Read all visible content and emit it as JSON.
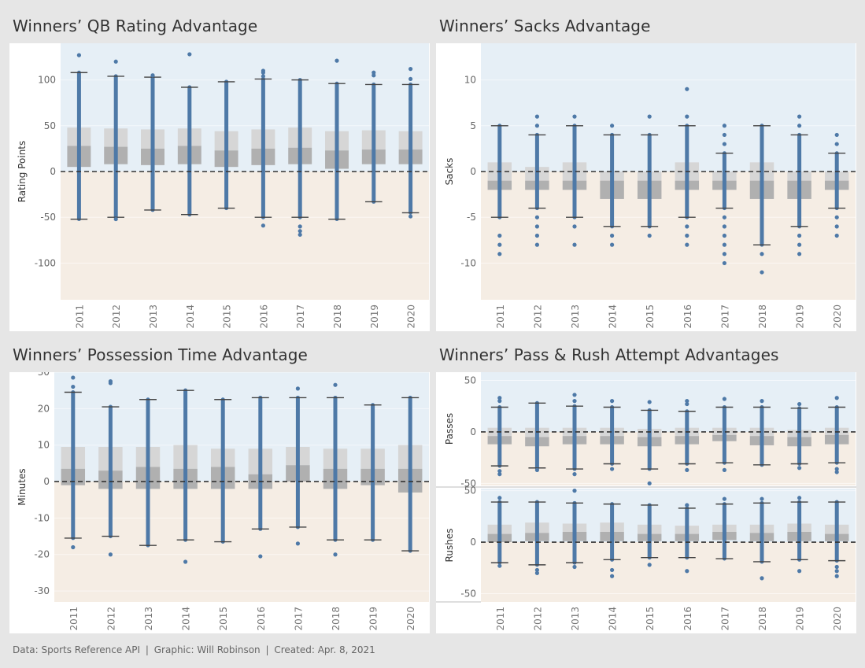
{
  "colors": {
    "positive_band": "#e6eff6",
    "negative_band": "#f5ede4",
    "box_outer": "#d6d6d6",
    "box_inner": "#b0b0b0",
    "median_line": "#8f9db0",
    "points": "#4e79a7",
    "whisker": "#444444",
    "zero_line": "#333333"
  },
  "footer": {
    "data": "Data: Sports Reference API",
    "graphic": "Graphic: Will Robinson",
    "created": "Created: Apr. 8, 2021",
    "separator": "|"
  },
  "chart_data": [
    {
      "id": "qb_rating",
      "type": "box",
      "title": "Winners’ QB Rating Advantage",
      "ylabel": "Rating Points",
      "categories": [
        "2011",
        "2012",
        "2013",
        "2014",
        "2015",
        "2016",
        "2017",
        "2018",
        "2019",
        "2020"
      ],
      "ylim": [
        -140,
        140
      ],
      "yticks": [
        100,
        50,
        0,
        -50,
        -100
      ],
      "ytick_labels": [
        "100",
        "50",
        "0",
        "-50",
        "-100"
      ],
      "boxes": [
        {
          "whisker_low": -52,
          "q1": 5,
          "median": 28,
          "q3": 48,
          "whisker_high": 108,
          "outliers": [
            127
          ],
          "lo_outliers": []
        },
        {
          "whisker_low": -50,
          "q1": 8,
          "median": 27,
          "q3": 47,
          "whisker_high": 104,
          "outliers": [
            120
          ],
          "lo_outliers": [
            -52
          ]
        },
        {
          "whisker_low": -42,
          "q1": 7,
          "median": 25,
          "q3": 46,
          "whisker_high": 103,
          "outliers": [
            105
          ],
          "lo_outliers": []
        },
        {
          "whisker_low": -47,
          "q1": 8,
          "median": 28,
          "q3": 47,
          "whisker_high": 92,
          "outliers": [
            128
          ],
          "lo_outliers": []
        },
        {
          "whisker_low": -40,
          "q1": 5,
          "median": 23,
          "q3": 44,
          "whisker_high": 98,
          "outliers": [],
          "lo_outliers": []
        },
        {
          "whisker_low": -50,
          "q1": 7,
          "median": 25,
          "q3": 46,
          "whisker_high": 101,
          "outliers": [
            104,
            108,
            110
          ],
          "lo_outliers": [
            -59
          ]
        },
        {
          "whisker_low": -50,
          "q1": 8,
          "median": 26,
          "q3": 48,
          "whisker_high": 100,
          "outliers": [],
          "lo_outliers": [
            -60,
            -65,
            -69
          ]
        },
        {
          "whisker_low": -52,
          "q1": 3,
          "median": 23,
          "q3": 44,
          "whisker_high": 96,
          "outliers": [
            121
          ],
          "lo_outliers": []
        },
        {
          "whisker_low": -33,
          "q1": 8,
          "median": 24,
          "q3": 45,
          "whisker_high": 95,
          "outliers": [
            105,
            108
          ],
          "lo_outliers": []
        },
        {
          "whisker_low": -45,
          "q1": 8,
          "median": 24,
          "q3": 44,
          "whisker_high": 95,
          "outliers": [
            101,
            112
          ],
          "lo_outliers": [
            -49
          ]
        }
      ]
    },
    {
      "id": "sacks",
      "type": "box",
      "title": "Winners’ Sacks Advantage",
      "ylabel": "Sacks",
      "categories": [
        "2011",
        "2012",
        "2013",
        "2014",
        "2015",
        "2016",
        "2017",
        "2018",
        "2019",
        "2020"
      ],
      "ylim": [
        -14,
        14
      ],
      "yticks": [
        10,
        5,
        0,
        -5,
        -10
      ],
      "ytick_labels": [
        "10",
        "5",
        "0",
        "-5",
        "-10"
      ],
      "boxes": [
        {
          "whisker_low": -5,
          "q1": -2,
          "median": -1,
          "q3": 1,
          "whisker_high": 5,
          "outliers": [],
          "lo_outliers": [
            -7,
            -8,
            -9
          ]
        },
        {
          "whisker_low": -4,
          "q1": -2,
          "median": -1,
          "q3": 0.5,
          "whisker_high": 4,
          "outliers": [
            5,
            6
          ],
          "lo_outliers": [
            -5,
            -6,
            -7,
            -8
          ]
        },
        {
          "whisker_low": -5,
          "q1": -2,
          "median": -1,
          "q3": 1,
          "whisker_high": 5,
          "outliers": [
            6
          ],
          "lo_outliers": [
            -6,
            -8
          ]
        },
        {
          "whisker_low": -6,
          "q1": -3,
          "median": -1,
          "q3": 0,
          "whisker_high": 4,
          "outliers": [
            5
          ],
          "lo_outliers": [
            -7,
            -8
          ]
        },
        {
          "whisker_low": -6,
          "q1": -3,
          "median": -1,
          "q3": 0,
          "whisker_high": 4,
          "outliers": [
            6
          ],
          "lo_outliers": [
            -7
          ]
        },
        {
          "whisker_low": -5,
          "q1": -2,
          "median": -1,
          "q3": 1,
          "whisker_high": 5,
          "outliers": [
            6,
            9
          ],
          "lo_outliers": [
            -6,
            -7,
            -8
          ]
        },
        {
          "whisker_low": -4,
          "q1": -2,
          "median": -1,
          "q3": 0,
          "whisker_high": 2,
          "outliers": [
            3,
            4,
            5
          ],
          "lo_outliers": [
            -5,
            -6,
            -7,
            -8,
            -9,
            -10
          ]
        },
        {
          "whisker_low": -8,
          "q1": -3,
          "median": -1,
          "q3": 1,
          "whisker_high": 5,
          "outliers": [],
          "lo_outliers": [
            -9,
            -11
          ]
        },
        {
          "whisker_low": -6,
          "q1": -3,
          "median": -1,
          "q3": 0,
          "whisker_high": 4,
          "outliers": [
            5,
            6
          ],
          "lo_outliers": [
            -7,
            -8,
            -9
          ]
        },
        {
          "whisker_low": -4,
          "q1": -2,
          "median": -1,
          "q3": 0,
          "whisker_high": 2,
          "outliers": [
            3,
            4
          ],
          "lo_outliers": [
            -5,
            -6,
            -7
          ]
        }
      ]
    },
    {
      "id": "possession",
      "type": "box",
      "title": "Winners’ Possession Time Advantage",
      "ylabel": "Minutes",
      "categories": [
        "2011",
        "2012",
        "2013",
        "2014",
        "2015",
        "2016",
        "2017",
        "2018",
        "2019",
        "2020"
      ],
      "ylim": [
        -33,
        30
      ],
      "yticks": [
        30,
        20,
        10,
        0,
        -10,
        -20,
        -30
      ],
      "ytick_labels": [
        "30",
        "20",
        "10",
        "0",
        "-10",
        "-20",
        "-30"
      ],
      "boxes": [
        {
          "whisker_low": -15.5,
          "q1": -1,
          "median": 3.5,
          "q3": 9.5,
          "whisker_high": 24.5,
          "outliers": [
            26,
            28.5
          ],
          "lo_outliers": [
            -18
          ]
        },
        {
          "whisker_low": -15,
          "q1": -2,
          "median": 3,
          "q3": 9.5,
          "whisker_high": 20.5,
          "outliers": [
            27,
            27.5
          ],
          "lo_outliers": [
            -20
          ]
        },
        {
          "whisker_low": -17.5,
          "q1": -2,
          "median": 4,
          "q3": 9.5,
          "whisker_high": 22.5,
          "outliers": [],
          "lo_outliers": []
        },
        {
          "whisker_low": -16,
          "q1": -2,
          "median": 3.5,
          "q3": 10,
          "whisker_high": 25,
          "outliers": [],
          "lo_outliers": [
            -22
          ]
        },
        {
          "whisker_low": -16.5,
          "q1": -2,
          "median": 4,
          "q3": 9,
          "whisker_high": 22.5,
          "outliers": [],
          "lo_outliers": []
        },
        {
          "whisker_low": -13,
          "q1": -2,
          "median": 2,
          "q3": 9,
          "whisker_high": 23,
          "outliers": [],
          "lo_outliers": [
            -20.5
          ]
        },
        {
          "whisker_low": -12.5,
          "q1": 0,
          "median": 4.5,
          "q3": 9.5,
          "whisker_high": 23,
          "outliers": [
            25.5
          ],
          "lo_outliers": [
            -17
          ]
        },
        {
          "whisker_low": -16,
          "q1": -2,
          "median": 3.5,
          "q3": 9,
          "whisker_high": 23,
          "outliers": [
            26.5
          ],
          "lo_outliers": [
            -20
          ]
        },
        {
          "whisker_low": -16,
          "q1": -1,
          "median": 3.5,
          "q3": 9,
          "whisker_high": 21,
          "outliers": [],
          "lo_outliers": []
        },
        {
          "whisker_low": -19,
          "q1": -3,
          "median": 3.5,
          "q3": 10,
          "whisker_high": 23,
          "outliers": [],
          "lo_outliers": []
        }
      ]
    },
    {
      "id": "passes",
      "type": "box",
      "title": "Winners’ Pass & Rush Attempt Advantages",
      "ylabel": "Passes",
      "categories": [
        "2011",
        "2012",
        "2013",
        "2014",
        "2015",
        "2016",
        "2017",
        "2018",
        "2019",
        "2020"
      ],
      "ylim": [
        -52,
        58
      ],
      "yticks": [
        50,
        0,
        -50
      ],
      "ytick_labels": [
        "50",
        "0",
        "-50"
      ],
      "boxes": [
        {
          "whisker_low": -33,
          "q1": -12,
          "median": -4,
          "q3": 4,
          "whisker_high": 24,
          "outliers": [
            30,
            33
          ],
          "lo_outliers": [
            -38,
            -41
          ]
        },
        {
          "whisker_low": -35,
          "q1": -14,
          "median": -5,
          "q3": 4,
          "whisker_high": 28,
          "outliers": [],
          "lo_outliers": [
            -37
          ]
        },
        {
          "whisker_low": -36,
          "q1": -12,
          "median": -4,
          "q3": 4,
          "whisker_high": 25,
          "outliers": [
            30,
            36
          ],
          "lo_outliers": [
            -41
          ]
        },
        {
          "whisker_low": -31,
          "q1": -12,
          "median": -4,
          "q3": 4,
          "whisker_high": 24,
          "outliers": [
            30
          ],
          "lo_outliers": [
            -36
          ]
        },
        {
          "whisker_low": -36,
          "q1": -14,
          "median": -5,
          "q3": 3,
          "whisker_high": 21,
          "outliers": [
            29
          ],
          "lo_outliers": [
            -50
          ]
        },
        {
          "whisker_low": -31,
          "q1": -12,
          "median": -4,
          "q3": 4,
          "whisker_high": 20,
          "outliers": [
            27,
            30
          ],
          "lo_outliers": [
            -37
          ]
        },
        {
          "whisker_low": -30,
          "q1": -9,
          "median": -3,
          "q3": 4,
          "whisker_high": 24,
          "outliers": [
            32
          ],
          "lo_outliers": [
            -37
          ]
        },
        {
          "whisker_low": -32,
          "q1": -13,
          "median": -4,
          "q3": 4,
          "whisker_high": 24,
          "outliers": [
            30
          ],
          "lo_outliers": []
        },
        {
          "whisker_low": -31,
          "q1": -14,
          "median": -5,
          "q3": 2,
          "whisker_high": 23,
          "outliers": [
            27
          ],
          "lo_outliers": [
            -35
          ]
        },
        {
          "whisker_low": -30,
          "q1": -12,
          "median": -3,
          "q3": 4,
          "whisker_high": 24,
          "outliers": [
            33
          ],
          "lo_outliers": [
            -36,
            -39
          ]
        }
      ]
    },
    {
      "id": "rushes",
      "type": "box",
      "title": "",
      "ylabel": "Rushes",
      "categories": [
        "2011",
        "2012",
        "2013",
        "2014",
        "2015",
        "2016",
        "2017",
        "2018",
        "2019",
        "2020"
      ],
      "ylim": [
        -58,
        52
      ],
      "yticks": [
        50,
        0,
        -50
      ],
      "ytick_labels": [
        "50",
        "0",
        "-50"
      ],
      "boxes": [
        {
          "whisker_low": -20,
          "q1": 0,
          "median": 8,
          "q3": 17,
          "whisker_high": 39,
          "outliers": [
            43
          ],
          "lo_outliers": [
            -23
          ]
        },
        {
          "whisker_low": -22,
          "q1": 1,
          "median": 9,
          "q3": 19,
          "whisker_high": 39,
          "outliers": [],
          "lo_outliers": [
            -27,
            -30
          ]
        },
        {
          "whisker_low": -20,
          "q1": 1,
          "median": 10,
          "q3": 18,
          "whisker_high": 38,
          "outliers": [
            50
          ],
          "lo_outliers": [
            -24
          ]
        },
        {
          "whisker_low": -17,
          "q1": 1,
          "median": 10,
          "q3": 19,
          "whisker_high": 37,
          "outliers": [],
          "lo_outliers": [
            -27,
            -33
          ]
        },
        {
          "whisker_low": -15,
          "q1": 1,
          "median": 8,
          "q3": 17,
          "whisker_high": 36,
          "outliers": [],
          "lo_outliers": [
            -22
          ]
        },
        {
          "whisker_low": -15,
          "q1": 1,
          "median": 8,
          "q3": 16,
          "whisker_high": 33,
          "outliers": [
            36
          ],
          "lo_outliers": [
            -28
          ]
        },
        {
          "whisker_low": -16,
          "q1": 2,
          "median": 10,
          "q3": 17,
          "whisker_high": 37,
          "outliers": [
            42
          ],
          "lo_outliers": []
        },
        {
          "whisker_low": -19,
          "q1": 1,
          "median": 9,
          "q3": 17,
          "whisker_high": 38,
          "outliers": [
            42
          ],
          "lo_outliers": [
            -35
          ]
        },
        {
          "whisker_low": -17,
          "q1": 1,
          "median": 10,
          "q3": 18,
          "whisker_high": 39,
          "outliers": [
            43
          ],
          "lo_outliers": [
            -28
          ]
        },
        {
          "whisker_low": -18,
          "q1": 1,
          "median": 8,
          "q3": 17,
          "whisker_high": 39,
          "outliers": [],
          "lo_outliers": [
            -24,
            -28,
            -33
          ]
        }
      ]
    }
  ]
}
